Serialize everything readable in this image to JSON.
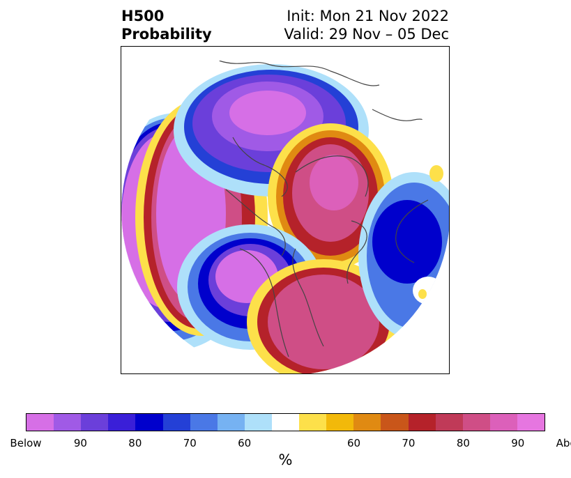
{
  "header": {
    "title_line1": "H500",
    "title_line2": "Probability",
    "init_text": "Init: Mon 21 Nov 2022",
    "valid_text": "Valid: 29 Nov – 05 Dec"
  },
  "colorbar": {
    "label": "%",
    "colors": [
      "#d66fe6",
      "#a05ae6",
      "#6b3fda",
      "#3a1fd8",
      "#0000cc",
      "#2440d6",
      "#4a78e6",
      "#76b2f2",
      "#aee0fa",
      "#ffffff",
      "#fde04a",
      "#f2b90a",
      "#e08a12",
      "#c9561a",
      "#b5222a",
      "#c03a58",
      "#cf4e86",
      "#dc60ba",
      "#e676e0"
    ],
    "ticks": [
      "Below",
      "90",
      "80",
      "70",
      "60",
      "60",
      "70",
      "80",
      "90",
      "Above"
    ]
  },
  "map": {
    "colors": {
      "below_deep": "#d66fe6",
      "below_mid": "#6b3fda",
      "below_blue": "#0000cc",
      "below_light": "#aee0fa",
      "above_yellow": "#fde04a",
      "above_red": "#b5222a",
      "above_deep": "#cf4e86",
      "coastline": "#444444"
    }
  }
}
